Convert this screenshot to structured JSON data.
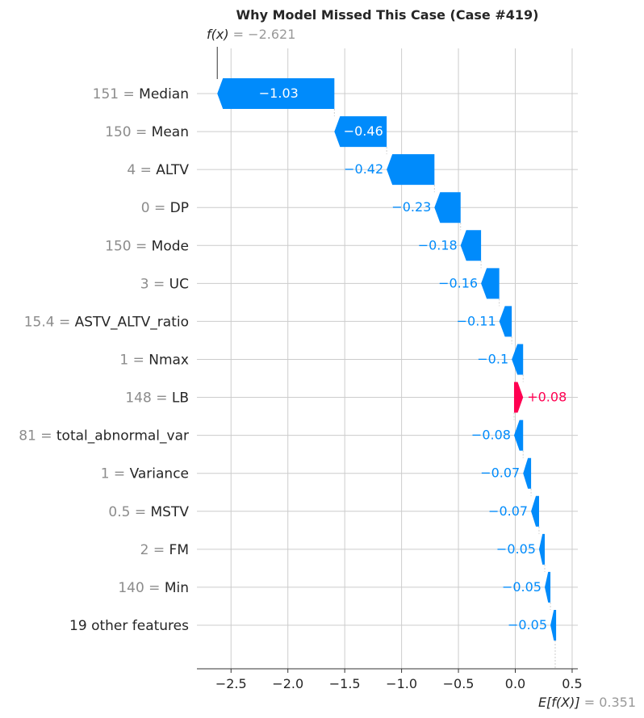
{
  "chart_data": {
    "type": "waterfall",
    "title": "Why Model Missed This Case (Case #419)",
    "fx_label": "f(x)",
    "fx_value": "−2.621",
    "fx_numeric": -2.621,
    "base_label": "E[f(X)]",
    "base_value": "0.351",
    "base_numeric": 0.351,
    "xlim": [
      -2.8,
      0.55
    ],
    "xticks": [
      -2.5,
      -2.0,
      -1.5,
      -1.0,
      -0.5,
      0.0,
      0.5
    ],
    "xtick_labels": [
      "−2.5",
      "−2.0",
      "−1.5",
      "−1.0",
      "−0.5",
      "0.0",
      "0.5"
    ],
    "features": [
      {
        "value": "151",
        "name": "Median",
        "contribution": -1.03,
        "label": "−1.03"
      },
      {
        "value": "150",
        "name": "Mean",
        "contribution": -0.46,
        "label": "−0.46"
      },
      {
        "value": "4",
        "name": "ALTV",
        "contribution": -0.42,
        "label": "−0.42"
      },
      {
        "value": "0",
        "name": "DP",
        "contribution": -0.23,
        "label": "−0.23"
      },
      {
        "value": "150",
        "name": "Mode",
        "contribution": -0.18,
        "label": "−0.18"
      },
      {
        "value": "3",
        "name": "UC",
        "contribution": -0.16,
        "label": "−0.16"
      },
      {
        "value": "15.4",
        "name": "ASTV_ALTV_ratio",
        "contribution": -0.11,
        "label": "−0.11"
      },
      {
        "value": "1",
        "name": "Nmax",
        "contribution": -0.1,
        "label": "−0.1"
      },
      {
        "value": "148",
        "name": "LB",
        "contribution": 0.08,
        "label": "+0.08"
      },
      {
        "value": "81",
        "name": "total_abnormal_var",
        "contribution": -0.08,
        "label": "−0.08"
      },
      {
        "value": "1",
        "name": "Variance",
        "contribution": -0.07,
        "label": "−0.07"
      },
      {
        "value": "0.5",
        "name": "MSTV",
        "contribution": -0.07,
        "label": "−0.07"
      },
      {
        "value": "2",
        "name": "FM",
        "contribution": -0.05,
        "label": "−0.05"
      },
      {
        "value": "140",
        "name": "Min",
        "contribution": -0.05,
        "label": "−0.05"
      },
      {
        "value": "",
        "name": "19 other features",
        "contribution": -0.05,
        "label": "−0.05"
      }
    ],
    "colors": {
      "negative": "#008bfb",
      "positive": "#ff0051",
      "grid": "#cccccc",
      "axis": "#333333",
      "muted": "#999999",
      "text": "#262626"
    }
  }
}
